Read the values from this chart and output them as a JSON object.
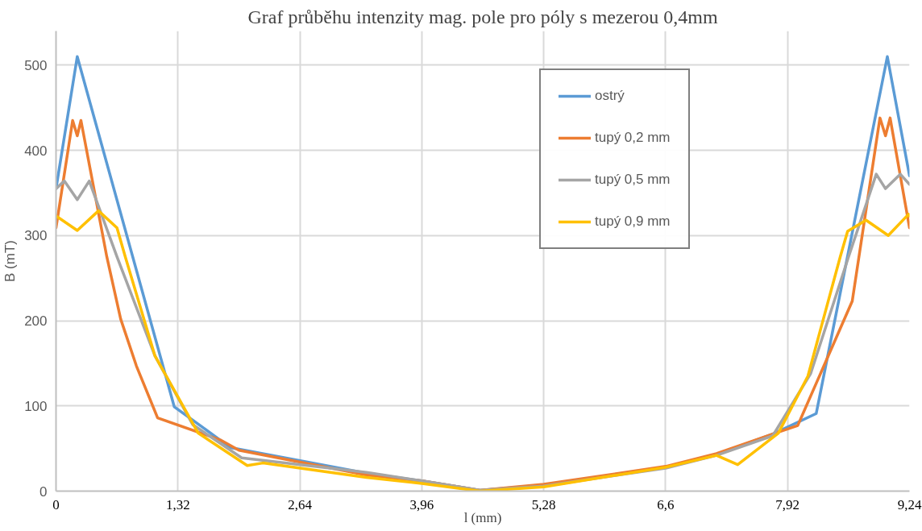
{
  "chart_data": {
    "type": "line",
    "title": "Graf průběhu intenzity mag. pole pro póly s mezerou 0,4mm",
    "xlabel": "l (mm)",
    "ylabel": "B (mT)",
    "xlim": [
      0,
      9.24
    ],
    "ylim": [
      0,
      540
    ],
    "xticks": [
      0,
      {
        "value": 1.32,
        "label": "1,32"
      },
      {
        "value": 2.64,
        "label": "2,64"
      },
      {
        "value": 3.96,
        "label": "3,96"
      },
      {
        "value": 5.28,
        "label": "5,28"
      },
      {
        "value": 6.6,
        "label": "6,6"
      },
      {
        "value": 7.92,
        "label": "7,92"
      },
      {
        "value": 9.24,
        "label": "9,24"
      }
    ],
    "yticks": [
      0,
      100,
      200,
      300,
      400,
      500
    ],
    "grid": true,
    "legend": "top right",
    "marker": "none",
    "line_style": "solid",
    "series": [
      {
        "name": "ostrý",
        "color": "#5b9bd5",
        "x": [
          0,
          0.23,
          1.28,
          1.89,
          3.36,
          3.96,
          4.59,
          5.28,
          6.6,
          7.15,
          7.76,
          8.23,
          9.0,
          9.24
        ],
        "values": [
          355,
          510,
          99,
          51,
          21,
          12,
          1,
          7,
          28,
          43,
          67,
          91,
          510,
          370
        ]
      },
      {
        "name": "tupý 0,2 mm",
        "color": "#ed7d31",
        "x": [
          0,
          0.18,
          0.23,
          0.27,
          0.55,
          0.7,
          0.87,
          1.1,
          1.78,
          1.98,
          3.36,
          3.96,
          4.59,
          5.28,
          6.6,
          7.15,
          7.76,
          8.03,
          8.62,
          8.92,
          8.98,
          9.03,
          9.24
        ],
        "values": [
          309,
          435,
          417,
          435,
          275,
          202,
          147,
          86,
          60,
          48,
          19,
          12,
          1,
          8,
          29,
          44,
          67,
          77,
          223,
          438,
          417,
          438,
          309
        ]
      },
      {
        "name": "tupý 0,5 mm",
        "color": "#a5a5a5",
        "x": [
          0,
          0.09,
          0.23,
          0.36,
          0.66,
          1.07,
          1.48,
          2.01,
          3.36,
          3.96,
          4.59,
          5.28,
          6.6,
          7.15,
          7.76,
          8.17,
          8.58,
          8.88,
          8.98,
          9.14,
          9.24
        ],
        "values": [
          355,
          364,
          342,
          364,
          275,
          159,
          78,
          39,
          22,
          12,
          1,
          6,
          27,
          42,
          65,
          138,
          275,
          372,
          355,
          372,
          360
        ]
      },
      {
        "name": "tupý 0,9 mm",
        "color": "#ffc000",
        "x": [
          0,
          0.23,
          0.46,
          0.66,
          0.75,
          1.07,
          1.54,
          2.07,
          2.24,
          3.36,
          3.96,
          4.59,
          5.28,
          6.6,
          7.15,
          7.38,
          7.82,
          8.14,
          8.49,
          8.57,
          8.77,
          9.01,
          9.23,
          9.24
        ],
        "values": [
          323,
          306,
          329,
          309,
          275,
          159,
          68,
          30,
          33,
          16,
          9,
          0,
          5,
          28,
          42,
          31,
          68,
          135,
          275,
          305,
          318,
          300,
          325,
          323
        ]
      }
    ]
  }
}
